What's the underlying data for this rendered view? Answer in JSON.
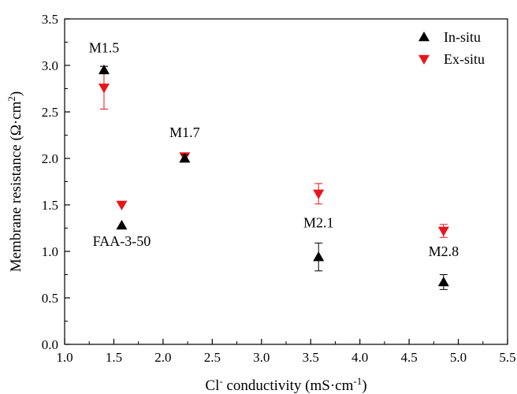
{
  "chart_data": {
    "type": "scatter",
    "title": "",
    "xlabel": {
      "main": "Cl",
      "sup": "-",
      "rest": " conductivity (mS·cm",
      "sup2": "-1",
      "end": ")"
    },
    "ylabel": {
      "main": "Membrane resistance (Ω·cm",
      "sup": "2",
      "end": ")"
    },
    "xlim": [
      1.0,
      5.5
    ],
    "ylim": [
      0.0,
      3.5
    ],
    "xticks": [
      "1.0",
      "1.5",
      "2.0",
      "2.5",
      "3.0",
      "3.5",
      "4.0",
      "4.5",
      "5.0",
      "5.5"
    ],
    "yticks": [
      "0.0",
      "0.5",
      "1.0",
      "1.5",
      "2.0",
      "2.5",
      "3.0",
      "3.5"
    ],
    "grid": false,
    "legend_position": "top-right",
    "series": [
      {
        "name": "In-situ",
        "marker": "triangle-up",
        "color": "#000000",
        "points": [
          {
            "x": 1.4,
            "y": 2.95,
            "err": 0.04
          },
          {
            "x": 1.58,
            "y": 1.28,
            "err": 0
          },
          {
            "x": 2.22,
            "y": 2.0,
            "err": 0.04
          },
          {
            "x": 3.58,
            "y": 0.94,
            "err": 0.15
          },
          {
            "x": 4.85,
            "y": 0.67,
            "err": 0.08
          }
        ]
      },
      {
        "name": "Ex-situ",
        "marker": "triangle-down",
        "color": "#e8151b",
        "points": [
          {
            "x": 1.4,
            "y": 2.76,
            "err": 0.23
          },
          {
            "x": 1.58,
            "y": 1.5,
            "err": 0
          },
          {
            "x": 2.22,
            "y": 2.02,
            "err": 0.04
          },
          {
            "x": 3.58,
            "y": 1.62,
            "err": 0.11
          },
          {
            "x": 4.85,
            "y": 1.22,
            "err": 0.07
          }
        ]
      }
    ],
    "annotations": [
      {
        "text": "M1.5",
        "x": 1.4,
        "y": 3.14
      },
      {
        "text": "M1.7",
        "x": 2.22,
        "y": 2.23
      },
      {
        "text": "FAA-3-50",
        "x": 1.58,
        "y": 1.06
      },
      {
        "text": "M2.1",
        "x": 3.58,
        "y": 1.26
      },
      {
        "text": "M2.8",
        "x": 4.85,
        "y": 0.95
      }
    ]
  }
}
